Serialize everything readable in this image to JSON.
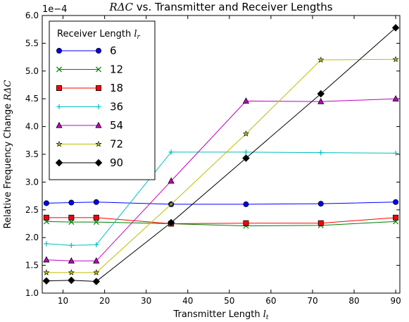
{
  "chart_data": {
    "type": "line",
    "title": "RΔC vs. Transmitter and Receiver Lengths",
    "xlabel": "Transmitter Length l_t",
    "ylabel": "Relative Frequency Change RΔC",
    "y_multiplier": "1e−4",
    "xlim": [
      5,
      91
    ],
    "ylim": [
      1.0,
      6.0
    ],
    "xticks": [
      10,
      20,
      30,
      40,
      50,
      60,
      70,
      80,
      90
    ],
    "yticks": [
      1.0,
      1.5,
      2.0,
      2.5,
      3.0,
      3.5,
      4.0,
      4.5,
      5.0,
      5.5,
      6.0
    ],
    "grid": false,
    "legend": {
      "title": "Receiver Length l_r",
      "placement": "top-left"
    },
    "series": [
      {
        "name": "6",
        "color": "#0000ff",
        "marker": "circle",
        "x": [
          6,
          12,
          18,
          36,
          54,
          72,
          90
        ],
        "values": [
          2.62,
          2.63,
          2.64,
          2.6,
          2.6,
          2.61,
          2.64
        ]
      },
      {
        "name": "12",
        "color": "#008000",
        "marker": "x",
        "x": [
          6,
          12,
          18,
          36,
          54,
          72,
          90
        ],
        "values": [
          2.29,
          2.28,
          2.28,
          2.25,
          2.21,
          2.22,
          2.29
        ]
      },
      {
        "name": "18",
        "color": "#ff0000",
        "marker": "square",
        "x": [
          6,
          12,
          18,
          36,
          54,
          72,
          90
        ],
        "values": [
          2.36,
          2.36,
          2.36,
          2.25,
          2.26,
          2.26,
          2.36
        ]
      },
      {
        "name": "36",
        "color": "#00bfbf",
        "marker": "plus",
        "x": [
          6,
          12,
          18,
          36,
          54,
          72,
          90
        ],
        "values": [
          1.89,
          1.86,
          1.87,
          3.54,
          3.54,
          3.53,
          3.52
        ]
      },
      {
        "name": "54",
        "color": "#bf00bf",
        "marker": "triangle",
        "x": [
          6,
          12,
          18,
          36,
          54,
          72,
          90
        ],
        "values": [
          1.6,
          1.58,
          1.58,
          3.02,
          4.46,
          4.45,
          4.5
        ]
      },
      {
        "name": "72",
        "color": "#bfbf00",
        "marker": "star",
        "x": [
          6,
          12,
          18,
          36,
          54,
          72,
          90
        ],
        "values": [
          1.37,
          1.37,
          1.37,
          2.6,
          3.87,
          5.2,
          5.21
        ]
      },
      {
        "name": "90",
        "color": "#000000",
        "marker": "diamond",
        "x": [
          6,
          12,
          18,
          36,
          54,
          72,
          90
        ],
        "values": [
          1.22,
          1.23,
          1.21,
          2.27,
          3.43,
          4.59,
          5.78
        ]
      }
    ],
    "title_parts": {
      "math": "RΔC",
      "text": " vs. Transmitter and Receiver Lengths"
    },
    "xlabel_parts": {
      "text": "Transmitter Length ",
      "math": "l",
      "sub": "t"
    },
    "ylabel_parts": {
      "text": "Relative Frequency Change ",
      "math": "RΔC"
    },
    "legend_title_parts": {
      "text": "Receiver Length ",
      "math": "l",
      "sub": "r"
    }
  }
}
